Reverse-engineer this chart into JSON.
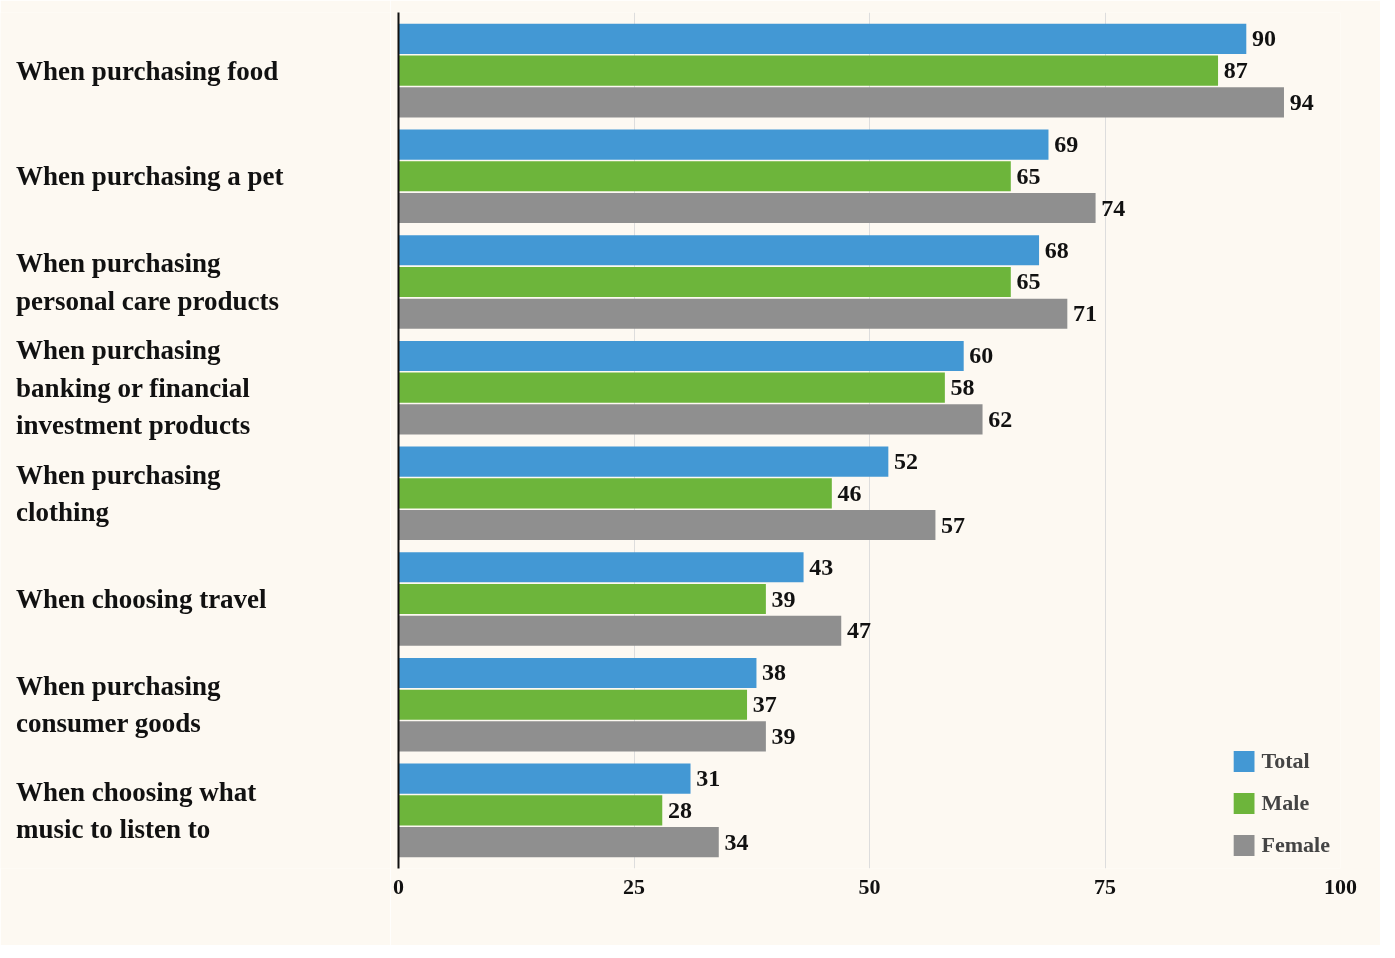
{
  "chart_data": {
    "type": "bar",
    "orientation": "horizontal",
    "categories": [
      "When purchasing food",
      "When purchasing a pet",
      "When purchasing\npersonal care products",
      "When purchasing\nbanking or financial\ninvestment products",
      "When purchasing\nclothing",
      "When choosing travel",
      "When purchasing\nconsumer goods",
      "When choosing what\nmusic to listen to"
    ],
    "series": [
      {
        "name": "Total",
        "color": "#4398d4",
        "values": [
          90,
          69,
          68,
          60,
          52,
          43,
          38,
          31
        ]
      },
      {
        "name": "Male",
        "color": "#6db53b",
        "values": [
          87,
          65,
          65,
          58,
          46,
          39,
          37,
          28
        ]
      },
      {
        "name": "Female",
        "color": "#8f8f8f",
        "values": [
          94,
          74,
          71,
          62,
          57,
          47,
          39,
          34
        ]
      }
    ],
    "xlim": [
      0,
      100
    ],
    "xticks": [
      0,
      25,
      50,
      75,
      100
    ],
    "grid": "x",
    "legend": "bottom right",
    "data_labels": true
  }
}
